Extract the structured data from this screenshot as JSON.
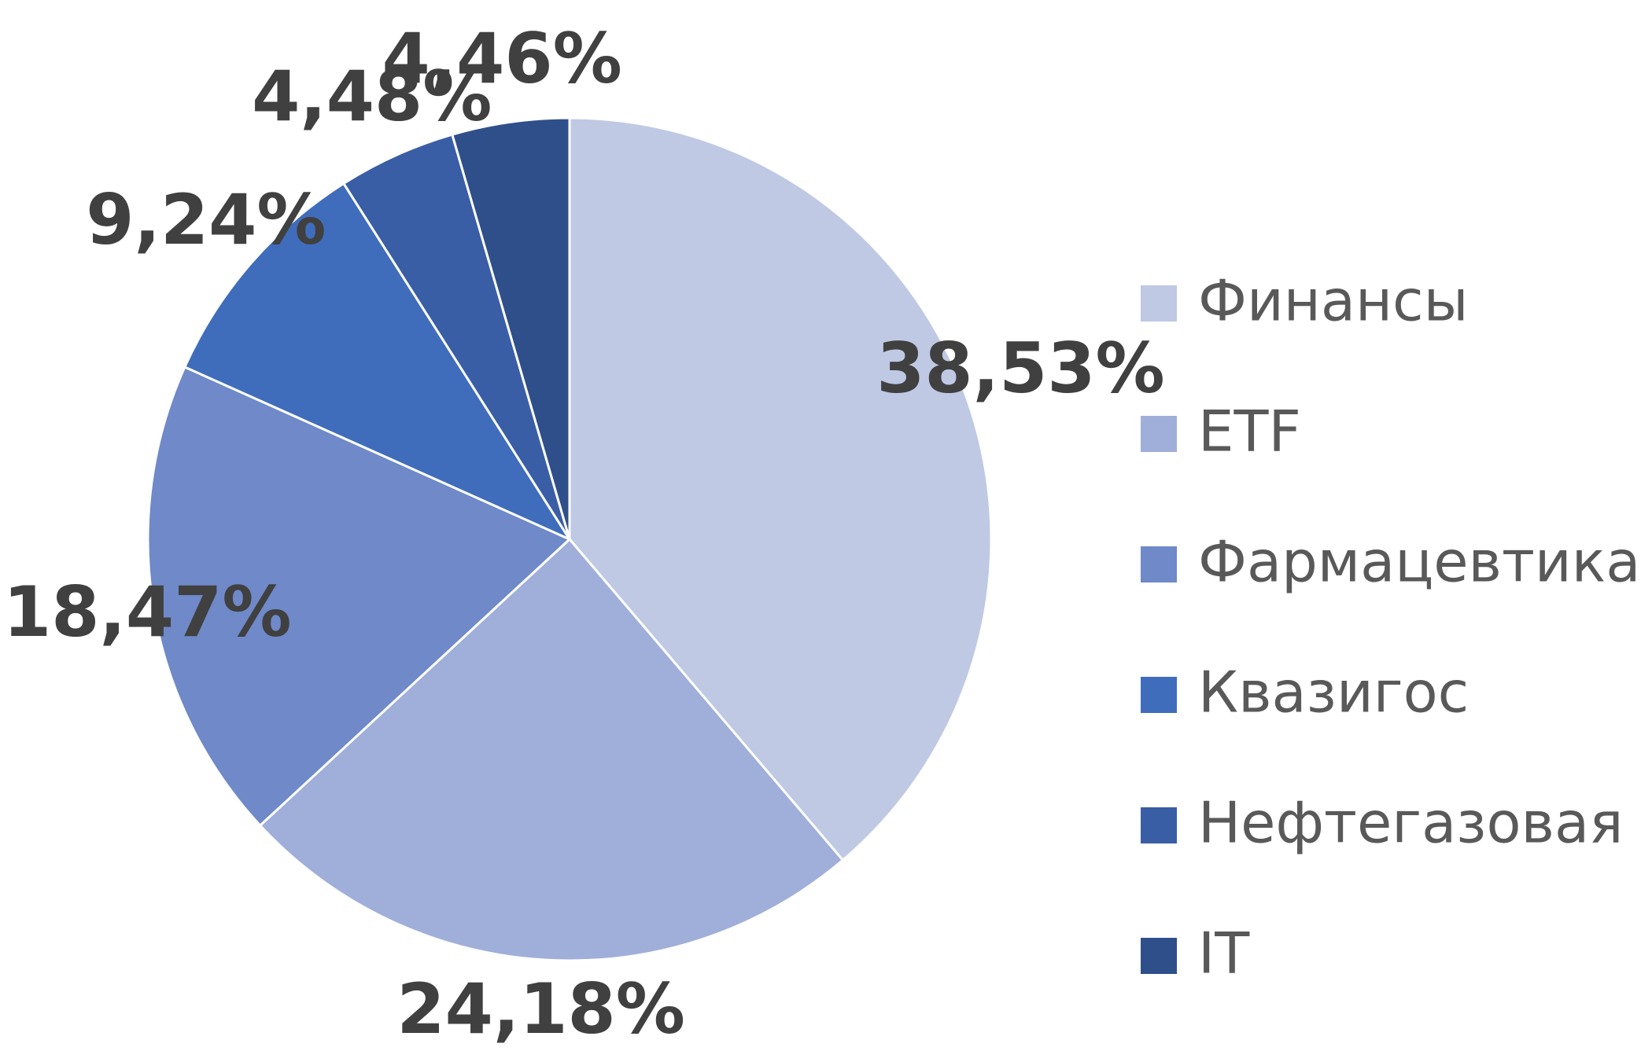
{
  "chart_data": {
    "type": "pie",
    "categories": [
      "Финансы",
      "ETF",
      "Фармацевтика",
      "Квазигос",
      "Нефтегазовая",
      "IT"
    ],
    "values": [
      38.53,
      24.18,
      18.47,
      9.24,
      4.48,
      4.46
    ],
    "value_labels": [
      "38,53%",
      "24,18%",
      "18,47%",
      "9,24%",
      "4,48%",
      "4,46%"
    ],
    "colors": [
      "#bfc9e4",
      "#9fafd9",
      "#6f89c9",
      "#406dbb",
      "#3a5ea5",
      "#2f4f8a"
    ],
    "legend": "right"
  }
}
